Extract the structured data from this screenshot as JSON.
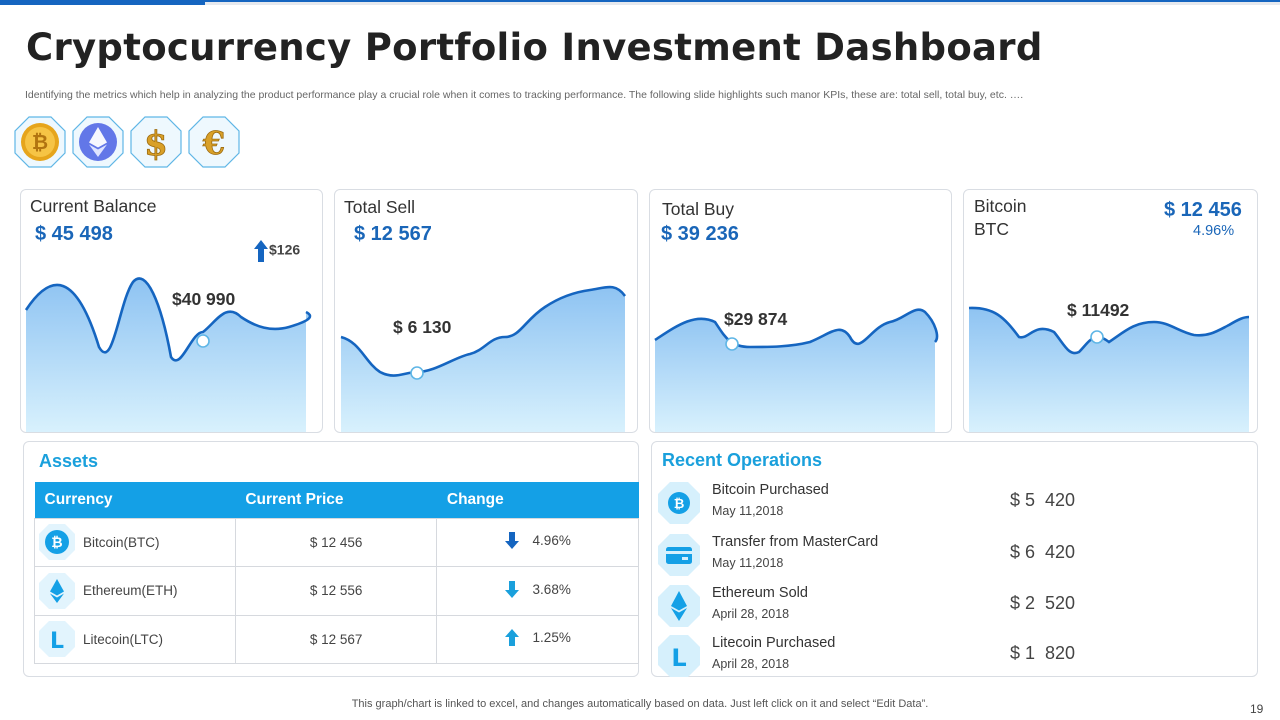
{
  "header": {
    "title": "Cryptocurrency Portfolio Investment Dashboard",
    "subtitle": "Identifying the metrics which help in analyzing the product performance play a crucial role when it comes to tracking performance. The following slide highlights such manor KPIs, these are: total sell, total buy, etc. …."
  },
  "coin_icons": [
    "bitcoin-coin-icon",
    "ethereum-coin-icon",
    "dollar-coin-icon",
    "euro-coin-icon"
  ],
  "colors": {
    "accent_blue": "#1a66b8",
    "table_header": "#14a0e6",
    "panel_title": "#1aa0dc",
    "area_fill_top": "#8ec3f2",
    "area_fill_bottom": "#d8f1fd",
    "line": "#1565c0"
  },
  "cards": {
    "current_balance": {
      "label": "Current Balance",
      "value": "$ 45 498",
      "delta": "$126",
      "delta_direction": "up",
      "point_label": "$40 990"
    },
    "total_sell": {
      "label": "Total Sell",
      "value": "$ 12 567",
      "point_label": "$ 6 130"
    },
    "total_buy": {
      "label": "Total Buy",
      "value": "$ 39 236",
      "point_label": "$29 874"
    },
    "bitcoin": {
      "label_line1": "Bitcoin",
      "label_line2": "BTC",
      "value": "$ 12 456",
      "percent": "4.96%",
      "point_label": "$ 11492"
    }
  },
  "assets": {
    "title": "Assets",
    "columns": [
      "Currency",
      "Current Price",
      "Change"
    ],
    "rows": [
      {
        "currency": "Bitcoin(BTC)",
        "icon": "bitcoin-icon",
        "price": "$ 12 456",
        "change": "4.96%",
        "direction": "down"
      },
      {
        "currency": "Ethereum(ETH)",
        "icon": "ethereum-icon",
        "price": "$ 12 556",
        "change": "3.68%",
        "direction": "down"
      },
      {
        "currency": "Litecoin(LTC)",
        "icon": "litecoin-icon",
        "price": "$ 12 567",
        "change": "1.25%",
        "direction": "up"
      }
    ]
  },
  "recent_operations": {
    "title": "Recent Operations",
    "items": [
      {
        "title": "Bitcoin Purchased",
        "date": "May 11,2018",
        "amount": "$ 5  420",
        "icon": "bitcoin-icon"
      },
      {
        "title": "Transfer from MasterCard",
        "date": "May 11,2018",
        "amount": "$ 6  420",
        "icon": "credit-card-icon"
      },
      {
        "title": "Ethereum  Sold",
        "date": "April 28, 2018",
        "amount": "$ 2  520",
        "icon": "ethereum-icon"
      },
      {
        "title": "Litecoin Purchased",
        "date": "April 28, 2018",
        "amount": "$ 1  820",
        "icon": "litecoin-icon"
      }
    ]
  },
  "footer": {
    "note": "This graph/chart is linked to excel,  and changes automatically based on data. Just left click on it and select “Edit Data”.",
    "page_number": "19"
  }
}
